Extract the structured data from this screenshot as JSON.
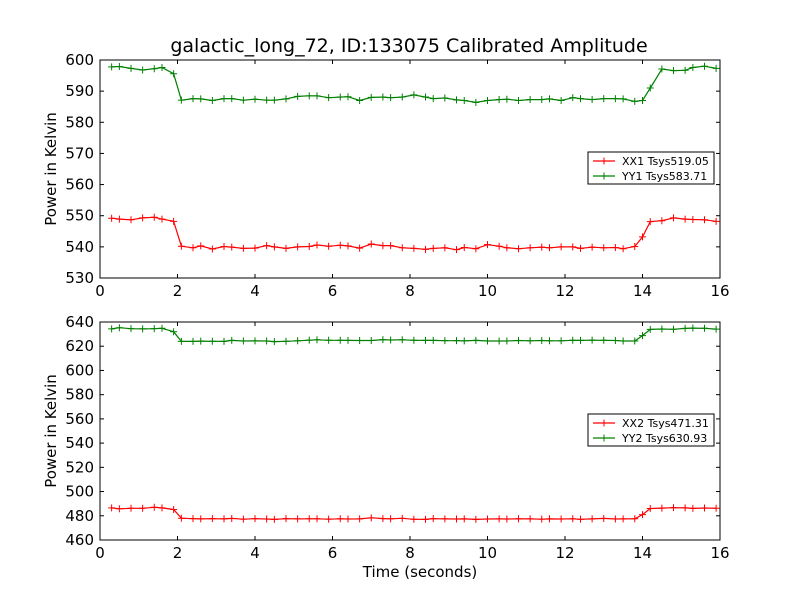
{
  "chart_data": [
    {
      "type": "line",
      "title": "galactic_long_72, ID:133075 Calibrated Amplitude",
      "xlabel": "",
      "ylabel": "Power in Kelvin",
      "xlim": [
        0,
        16
      ],
      "ylim": [
        530,
        600
      ],
      "xticks": [
        "0",
        "2",
        "4",
        "6",
        "8",
        "10",
        "12",
        "14",
        "16"
      ],
      "yticks": [
        "530",
        "540",
        "550",
        "560",
        "570",
        "580",
        "590",
        "600"
      ],
      "legend_position": "right",
      "x": [
        0.3,
        0.5,
        0.8,
        1.1,
        1.4,
        1.6,
        1.9,
        2.1,
        2.4,
        2.6,
        2.9,
        3.2,
        3.4,
        3.7,
        4.0,
        4.3,
        4.5,
        4.8,
        5.1,
        5.4,
        5.6,
        5.9,
        6.2,
        6.4,
        6.7,
        7.0,
        7.3,
        7.5,
        7.8,
        8.1,
        8.4,
        8.6,
        8.9,
        9.2,
        9.4,
        9.7,
        10.0,
        10.3,
        10.5,
        10.8,
        11.1,
        11.4,
        11.6,
        11.9,
        12.2,
        12.4,
        12.7,
        13.0,
        13.3,
        13.5,
        13.8,
        14.0,
        14.2,
        14.5,
        14.8,
        15.1,
        15.3,
        15.6,
        15.9
      ],
      "series": [
        {
          "name": "XX1 Tsys519.05",
          "color": "#ff0000",
          "values": [
            549.2,
            548.9,
            548.7,
            549.3,
            549.5,
            548.9,
            548.2,
            540.2,
            539.7,
            540.3,
            539.3,
            540.1,
            539.9,
            539.5,
            539.6,
            540.4,
            540.0,
            539.5,
            540.0,
            540.1,
            540.6,
            540.2,
            540.5,
            540.3,
            539.6,
            540.9,
            540.4,
            540.4,
            539.7,
            539.5,
            539.2,
            539.5,
            539.7,
            539.1,
            539.8,
            539.4,
            540.7,
            540.2,
            539.7,
            539.4,
            539.7,
            539.9,
            539.7,
            540.0,
            540.0,
            539.5,
            539.9,
            539.7,
            539.8,
            539.4,
            540.1,
            543.2,
            548.1,
            548.4,
            549.3,
            548.9,
            548.8,
            548.7,
            548.2
          ]
        },
        {
          "name": "YY1 Tsys583.71",
          "color": "#008000",
          "values": [
            597.8,
            597.9,
            597.3,
            596.8,
            597.2,
            597.6,
            595.6,
            587.1,
            587.6,
            587.5,
            587.0,
            587.6,
            587.6,
            587.1,
            587.4,
            587.1,
            587.1,
            587.5,
            588.3,
            588.5,
            588.5,
            587.9,
            588.1,
            588.2,
            587.0,
            588.0,
            588.1,
            587.9,
            588.1,
            588.8,
            588.1,
            587.6,
            587.8,
            587.2,
            587.0,
            586.4,
            587.0,
            587.3,
            587.4,
            587.0,
            587.3,
            587.3,
            587.5,
            587.0,
            587.9,
            587.6,
            587.3,
            587.6,
            587.6,
            587.5,
            586.7,
            587.0,
            591.0,
            597.1,
            596.6,
            596.7,
            597.6,
            598.0,
            597.3
          ]
        }
      ]
    },
    {
      "type": "line",
      "title": "",
      "xlabel": "Time (seconds)",
      "ylabel": "Power in Kelvin",
      "xlim": [
        0,
        16
      ],
      "ylim": [
        460,
        640
      ],
      "xticks": [
        "0",
        "2",
        "4",
        "6",
        "8",
        "10",
        "12",
        "14",
        "16"
      ],
      "yticks": [
        "460",
        "480",
        "500",
        "520",
        "540",
        "560",
        "580",
        "600",
        "620",
        "640"
      ],
      "legend_position": "right",
      "x": [
        0.3,
        0.5,
        0.8,
        1.1,
        1.4,
        1.6,
        1.9,
        2.1,
        2.4,
        2.6,
        2.9,
        3.2,
        3.4,
        3.7,
        4.0,
        4.3,
        4.5,
        4.8,
        5.1,
        5.4,
        5.6,
        5.9,
        6.2,
        6.4,
        6.7,
        7.0,
        7.3,
        7.5,
        7.8,
        8.1,
        8.4,
        8.6,
        8.9,
        9.2,
        9.4,
        9.7,
        10.0,
        10.3,
        10.5,
        10.8,
        11.1,
        11.4,
        11.6,
        11.9,
        12.2,
        12.4,
        12.7,
        13.0,
        13.3,
        13.5,
        13.8,
        14.0,
        14.2,
        14.5,
        14.8,
        15.1,
        15.3,
        15.6,
        15.9
      ],
      "series": [
        {
          "name": "XX2 Tsys471.31",
          "color": "#ff0000",
          "values": [
            486.5,
            485.8,
            486.2,
            486.2,
            487.0,
            486.5,
            485.2,
            478.0,
            477.6,
            477.4,
            477.6,
            477.4,
            477.8,
            477.2,
            477.6,
            477.3,
            477.0,
            477.6,
            477.4,
            477.5,
            477.5,
            477.2,
            477.5,
            477.3,
            477.4,
            478.3,
            477.7,
            477.5,
            477.9,
            477.1,
            477.0,
            477.6,
            477.4,
            477.3,
            477.4,
            477.0,
            477.3,
            477.4,
            477.3,
            477.5,
            477.4,
            477.2,
            477.4,
            477.3,
            477.5,
            477.1,
            477.4,
            477.8,
            477.3,
            477.4,
            477.5,
            481.0,
            486.0,
            486.3,
            486.7,
            486.5,
            486.1,
            486.4,
            486.2
          ]
        },
        {
          "name": "YY2 Tsys630.93",
          "color": "#008000",
          "values": [
            634.3,
            635.3,
            634.5,
            634.3,
            634.5,
            634.8,
            632.0,
            624.0,
            624.0,
            624.2,
            624.1,
            624.0,
            624.8,
            624.3,
            624.4,
            624.3,
            623.8,
            624.1,
            624.5,
            625.0,
            625.3,
            624.9,
            624.9,
            624.8,
            624.7,
            624.7,
            625.4,
            625.1,
            625.3,
            624.9,
            624.8,
            624.8,
            624.6,
            624.6,
            624.4,
            624.8,
            624.3,
            624.3,
            624.3,
            624.7,
            624.5,
            624.7,
            624.5,
            624.5,
            624.9,
            624.8,
            625.0,
            624.9,
            624.7,
            624.3,
            624.3,
            628.8,
            633.9,
            634.2,
            634.0,
            634.7,
            635.0,
            634.8,
            634.1
          ]
        }
      ]
    }
  ]
}
